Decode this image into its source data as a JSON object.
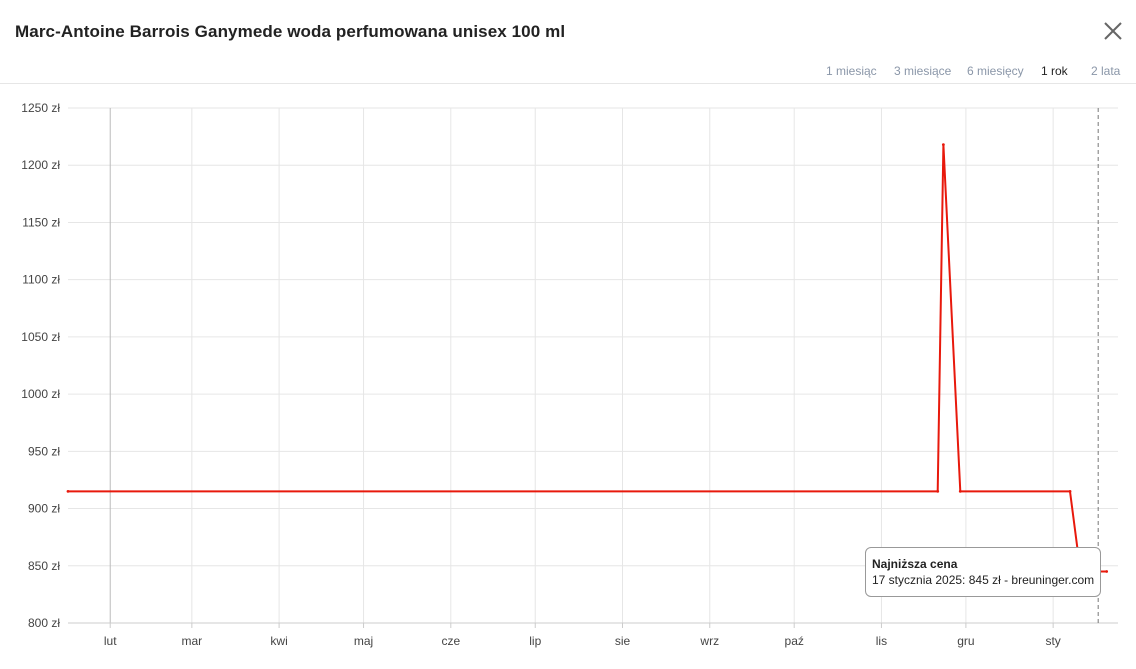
{
  "modal": {
    "title": "Marc-Antoine Barrois Ganymede woda perfumowana unisex 100 ml",
    "close_icon": "close-icon"
  },
  "ranges": [
    {
      "label": "1 miesiąc",
      "active": false
    },
    {
      "label": "3 miesiące",
      "active": false
    },
    {
      "label": "6 miesięcy",
      "active": false
    },
    {
      "label": "1 rok",
      "active": true
    },
    {
      "label": "2 lata",
      "active": false
    }
  ],
  "tooltip": {
    "title": "Najniższa cena",
    "body": "17 stycznia 2025: 845 zł - breuninger.com"
  },
  "colors": {
    "line": "#e8190c",
    "grid": "#e6e6e6",
    "axis_text": "#444444",
    "inactive_link": "#8a96a8",
    "active_link": "#222222"
  },
  "chart_data": {
    "type": "line",
    "y_unit": "zł",
    "ylim": [
      800,
      1250
    ],
    "y_ticks": [
      "1250 zł",
      "1200 zł",
      "1150 zł",
      "1100 zł",
      "1050 zł",
      "1000 zł",
      "950 zł",
      "900 zł",
      "850 zł",
      "800 zł"
    ],
    "x_ticks": [
      "lut",
      "mar",
      "kwi",
      "maj",
      "cze",
      "lip",
      "sie",
      "wrz",
      "paź",
      "lis",
      "gru",
      "sty"
    ],
    "grid": true,
    "series": [
      {
        "x": [
          "2024-01-17",
          "2024-11-21",
          "2024-11-23",
          "2024-11-29",
          "2025-01-07",
          "2025-01-10",
          "2025-01-17",
          "2025-01-20"
        ],
        "y": [
          915,
          915,
          1218,
          915,
          915,
          858,
          845,
          845
        ]
      }
    ],
    "highlight": {
      "x": "2025-01-17",
      "y": 845
    }
  }
}
